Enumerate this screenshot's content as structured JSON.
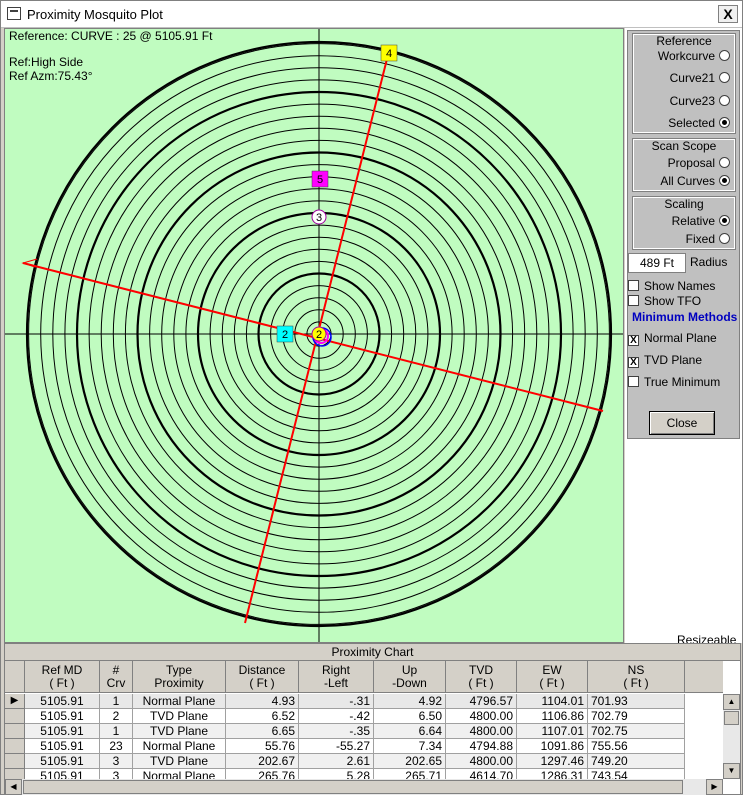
{
  "window": {
    "title": "Proximity Mosquito Plot",
    "close_glyph": "X"
  },
  "plot": {
    "reference_line": "Reference: CURVE : 25 @ 5105.91 Ft",
    "ref_type": "Ref:High Side",
    "ref_azimuth": "Ref Azm:75.43°",
    "markers": [
      {
        "label": "4",
        "color": "#ffff00"
      },
      {
        "label": "5",
        "color": "#ff00ff"
      },
      {
        "label": "3",
        "color": "#ffffff"
      },
      {
        "label": "2",
        "color": "#00ffff"
      },
      {
        "label": "2",
        "color": "#ffff00"
      }
    ],
    "colors": {
      "background": "#c0fcc0",
      "rings": "#000000",
      "line": "#ff0000"
    }
  },
  "panel": {
    "reference": {
      "title": "Reference",
      "options": [
        {
          "label": "Workcurve",
          "selected": false
        },
        {
          "label": "Curve21",
          "selected": false
        },
        {
          "label": "Curve23",
          "selected": false
        },
        {
          "label": "Selected",
          "selected": true
        }
      ]
    },
    "scan_scope": {
      "title": "Scan Scope",
      "options": [
        {
          "label": "Proposal",
          "selected": false
        },
        {
          "label": "All Curves",
          "selected": true
        }
      ]
    },
    "scaling": {
      "title": "Scaling",
      "options": [
        {
          "label": "Relative",
          "selected": true
        },
        {
          "label": "Fixed",
          "selected": false
        }
      ]
    },
    "radius_value": "489 Ft",
    "radius_label": "Radius",
    "show_names": "Show Names",
    "show_tfo": "Show TFO",
    "minimum_methods": "Minimum Methods",
    "normal_plane": "Normal Plane",
    "tvd_plane": "TVD Plane",
    "true_minimum": "True Minimum",
    "check_mark": "X",
    "close": "Close",
    "resizeable": "Resizeable"
  },
  "grid": {
    "caption": "Proximity Chart",
    "headers": [
      [
        "Ref MD",
        "( Ft )"
      ],
      [
        "#",
        "Crv"
      ],
      [
        "Type",
        "Proximity"
      ],
      [
        "Distance",
        "( Ft )"
      ],
      [
        "Right",
        "-Left"
      ],
      [
        "Up",
        "-Down"
      ],
      [
        "TVD",
        "( Ft )"
      ],
      [
        "EW",
        "( Ft )"
      ],
      [
        "NS",
        "( Ft )"
      ]
    ],
    "rows": [
      [
        "5105.91",
        "1",
        "Normal Plane",
        "4.93",
        "-.31",
        "4.92",
        "4796.57",
        "1104.01",
        "701.93"
      ],
      [
        "5105.91",
        "2",
        "TVD Plane",
        "6.52",
        "-.42",
        "6.50",
        "4800.00",
        "1106.86",
        "702.79"
      ],
      [
        "5105.91",
        "1",
        "TVD Plane",
        "6.65",
        "-.35",
        "6.64",
        "4800.00",
        "1107.01",
        "702.75"
      ],
      [
        "5105.91",
        "23",
        "Normal Plane",
        "55.76",
        "-55.27",
        "7.34",
        "4794.88",
        "1091.86",
        "755.56"
      ],
      [
        "5105.91",
        "3",
        "TVD Plane",
        "202.67",
        "2.61",
        "202.65",
        "4800.00",
        "1297.46",
        "749.20"
      ],
      [
        "5105.91",
        "3",
        "Normal Plane",
        "265.76",
        "5.28",
        "265.71",
        "4614.70",
        "1286.31",
        "743.54"
      ]
    ],
    "row_pointer": "▶"
  }
}
